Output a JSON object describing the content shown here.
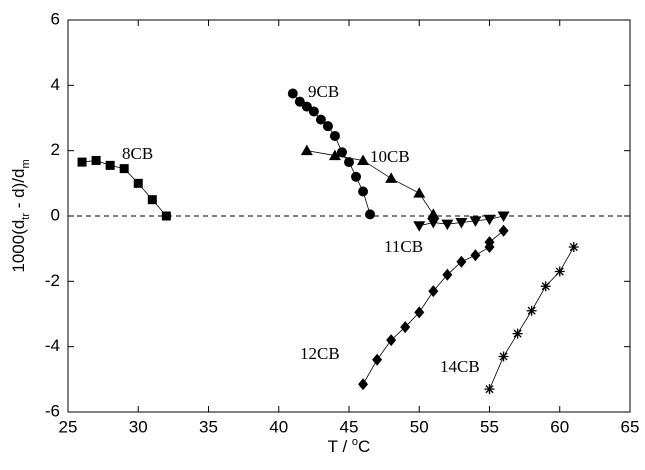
{
  "chart_data": {
    "type": "line",
    "xlabel_parts": [
      "T / ",
      "o",
      "C"
    ],
    "ylabel_parts": [
      "1000(d",
      "tr",
      " - d)/d",
      "m"
    ],
    "xlim": [
      25,
      65
    ],
    "xticks": [
      25,
      30,
      35,
      40,
      45,
      50,
      55,
      60,
      65
    ],
    "ylim": [
      -6,
      6
    ],
    "yticks": [
      -6,
      -4,
      -2,
      0,
      2,
      4,
      6
    ],
    "hline": 0,
    "series": [
      {
        "name": "8CB",
        "marker": "square",
        "color": "#000000",
        "x": [
          26,
          27,
          28,
          29,
          30,
          31,
          32
        ],
        "values": [
          1.65,
          1.7,
          1.55,
          1.45,
          1.0,
          0.5,
          0.0
        ]
      },
      {
        "name": "9CB",
        "marker": "circle",
        "color": "#000000",
        "x": [
          41,
          41.5,
          42,
          42.5,
          43,
          43.5,
          44,
          44.5,
          45,
          45.5,
          46,
          46.5
        ],
        "values": [
          3.75,
          3.5,
          3.35,
          3.2,
          2.95,
          2.75,
          2.45,
          1.95,
          1.65,
          1.2,
          0.75,
          0.05
        ]
      },
      {
        "name": "10CB",
        "marker": "triangle-up",
        "color": "#000000",
        "x": [
          42,
          44,
          46,
          48,
          50,
          51
        ],
        "values": [
          2.0,
          1.85,
          1.7,
          1.15,
          0.7,
          0.05
        ]
      },
      {
        "name": "11CB",
        "marker": "triangle-down",
        "color": "#000000",
        "x": [
          50,
          51,
          52,
          53,
          54,
          55,
          56
        ],
        "values": [
          -0.3,
          -0.2,
          -0.25,
          -0.2,
          -0.15,
          -0.1,
          0.0
        ]
      },
      {
        "name": "12CB",
        "marker": "diamond",
        "color": "#000000",
        "x": [
          46,
          47,
          48,
          49,
          50,
          51,
          52,
          53,
          54,
          55,
          55,
          56
        ],
        "values": [
          -5.15,
          -4.4,
          -3.8,
          -3.4,
          -2.95,
          -2.3,
          -1.8,
          -1.4,
          -1.2,
          -0.95,
          -0.8,
          -0.45
        ]
      },
      {
        "name": "14CB",
        "marker": "asterisk",
        "color": "#000000",
        "x": [
          55,
          56,
          57,
          58,
          59,
          60,
          61
        ],
        "values": [
          -5.3,
          -4.3,
          -3.6,
          -2.9,
          -2.15,
          -1.7,
          -0.95
        ]
      }
    ]
  }
}
